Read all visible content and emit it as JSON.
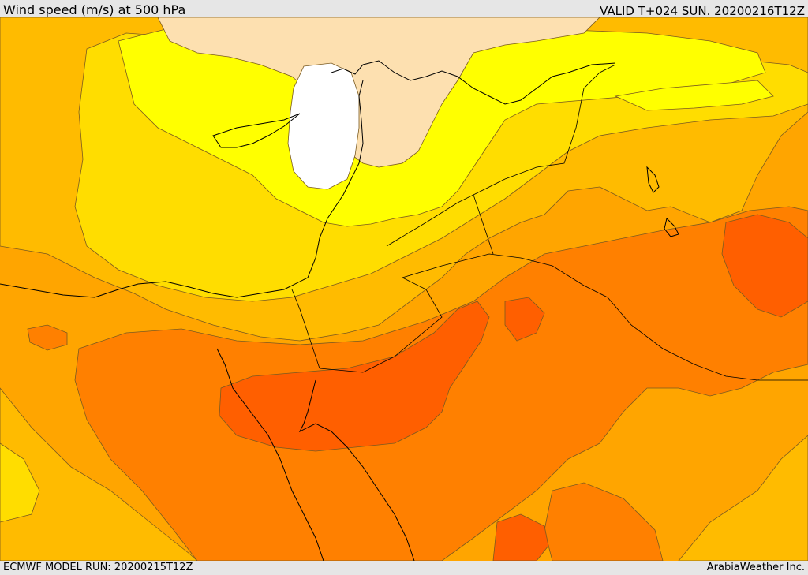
{
  "header": {
    "title": "Wind speed (m/s) at 500 hPa",
    "valid": "VALID T+024 SUN. 20200216T12Z"
  },
  "footer": {
    "model_run": "ECMWF MODEL RUN: 20200215T12Z",
    "credit": "ArabiaWeather Inc."
  },
  "palette": {
    "lt_10": "#fde0b0",
    "10_20": "#ffffff",
    "20_30": "#ffff00",
    "30_40": "#ffdd00",
    "40_50": "#ffbb00",
    "50_60": "#ffa500",
    "60_70": "#ff8000",
    "70_80": "#ff5f00"
  }
}
